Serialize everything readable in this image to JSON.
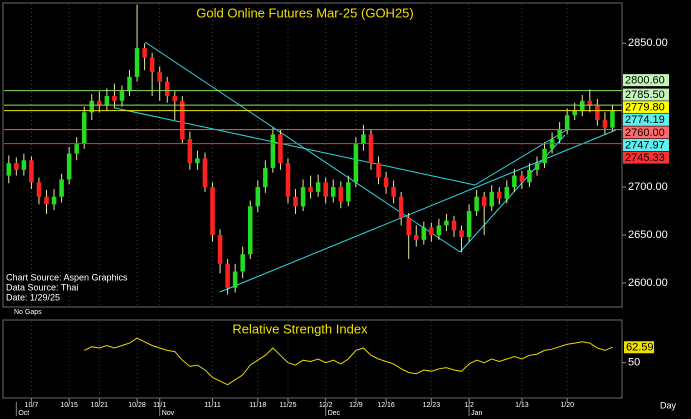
{
  "chart_data": [
    {
      "type": "candlestick",
      "title": "Gold Online Futures Mar-25 (GOH25)",
      "open": [
        2712,
        2725,
        2718,
        2728,
        2705,
        2690,
        2682,
        2690,
        2708,
        2735,
        2745,
        2778,
        2790,
        2785,
        2795,
        2790,
        2800,
        2815,
        2845,
        2835,
        2820,
        2810,
        2795,
        2790,
        2750,
        2725,
        2730,
        2700,
        2650,
        2620,
        2595,
        2612,
        2630,
        2680,
        2700,
        2720,
        2755,
        2725,
        2690,
        2680,
        2700,
        2695,
        2705,
        2690,
        2700,
        2685,
        2705,
        2745,
        2755,
        2725,
        2710,
        2700,
        2690,
        2668,
        2650,
        2645,
        2658,
        2650,
        2660,
        2665,
        2655,
        2648,
        2675,
        2690,
        2680,
        2695,
        2688,
        2700,
        2712,
        2705,
        2718,
        2725,
        2740,
        2750,
        2760,
        2775,
        2780,
        2790,
        2785,
        2770,
        2762
      ],
      "high": [
        2733,
        2731,
        2735,
        2732,
        2710,
        2697,
        2698,
        2714,
        2742,
        2752,
        2784,
        2797,
        2800,
        2803,
        2808,
        2806,
        2822,
        2890,
        2850,
        2840,
        2826,
        2815,
        2800,
        2795,
        2758,
        2738,
        2736,
        2705,
        2656,
        2625,
        2620,
        2638,
        2686,
        2707,
        2728,
        2762,
        2760,
        2730,
        2698,
        2708,
        2712,
        2713,
        2710,
        2708,
        2706,
        2712,
        2752,
        2765,
        2760,
        2732,
        2716,
        2707,
        2695,
        2673,
        2660,
        2664,
        2663,
        2667,
        2672,
        2670,
        2660,
        2682,
        2697,
        2695,
        2702,
        2700,
        2707,
        2719,
        2717,
        2725,
        2732,
        2747,
        2757,
        2768,
        2782,
        2788,
        2796,
        2802,
        2792,
        2778,
        2786
      ],
      "low": [
        2704,
        2712,
        2712,
        2698,
        2682,
        2672,
        2676,
        2684,
        2703,
        2728,
        2740,
        2770,
        2778,
        2780,
        2782,
        2784,
        2795,
        2810,
        2822,
        2795,
        2790,
        2788,
        2770,
        2745,
        2718,
        2718,
        2695,
        2643,
        2610,
        2588,
        2590,
        2605,
        2625,
        2674,
        2694,
        2715,
        2718,
        2683,
        2672,
        2675,
        2688,
        2690,
        2683,
        2684,
        2678,
        2680,
        2700,
        2738,
        2718,
        2703,
        2693,
        2683,
        2660,
        2625,
        2638,
        2640,
        2643,
        2645,
        2654,
        2648,
        2632,
        2643,
        2670,
        2650,
        2675,
        2682,
        2683,
        2695,
        2698,
        2700,
        2712,
        2720,
        2735,
        2745,
        2755,
        2770,
        2774,
        2778,
        2764,
        2755,
        2758
      ],
      "close": [
        2725,
        2718,
        2728,
        2705,
        2690,
        2682,
        2690,
        2708,
        2735,
        2745,
        2778,
        2790,
        2785,
        2795,
        2790,
        2800,
        2815,
        2845,
        2835,
        2820,
        2810,
        2795,
        2790,
        2750,
        2725,
        2730,
        2700,
        2650,
        2620,
        2595,
        2612,
        2630,
        2680,
        2700,
        2720,
        2755,
        2725,
        2690,
        2680,
        2700,
        2695,
        2705,
        2690,
        2700,
        2685,
        2705,
        2745,
        2755,
        2725,
        2710,
        2700,
        2690,
        2668,
        2650,
        2645,
        2658,
        2650,
        2660,
        2665,
        2655,
        2648,
        2675,
        2690,
        2680,
        2695,
        2688,
        2700,
        2712,
        2705,
        2718,
        2725,
        2740,
        2750,
        2760,
        2775,
        2780,
        2790,
        2785,
        2770,
        2762,
        2780
      ],
      "up_color": "#22dd22",
      "down_color": "#ff2020",
      "wick_color": "#e8e8a0",
      "xlim": [
        -0.5,
        81
      ],
      "ylim": [
        2576,
        2891
      ],
      "yticks": [
        {
          "value": 2600,
          "label": "2600.00"
        },
        {
          "value": 2650,
          "label": "2650.00"
        },
        {
          "value": 2700,
          "label": "2700.00"
        },
        {
          "value": 2850,
          "label": "2850.00"
        }
      ],
      "levels": [
        {
          "value": 2800.6,
          "label": "2800.60",
          "color": "#c4f5b8",
          "line": "#8ee05a"
        },
        {
          "value": 2785.5,
          "label": "2785.50",
          "color": "#c4f5b8",
          "line": "#8ee05a"
        },
        {
          "value": 2779.8,
          "label": "2779.80",
          "color": "#ffff00",
          "line": "#e8e800"
        },
        {
          "value": 2774.19,
          "label": "2774.19",
          "color": "#5cf0f0",
          "line": null
        },
        {
          "value": 2760,
          "label": "2760.00",
          "color": "#ff6a6a",
          "line": "#ff5050"
        },
        {
          "value": 2747.97,
          "label": "2747.97",
          "color": "#5cf0f0",
          "line": null
        },
        {
          "value": 2745.33,
          "label": "2745.33",
          "color": "#ff3030",
          "line": "#ff3030"
        }
      ],
      "xticks": [
        {
          "value": 3,
          "label": "10/7"
        },
        {
          "value": 8,
          "label": "10/15"
        },
        {
          "value": 12,
          "label": "10/21"
        },
        {
          "value": 17,
          "label": "10/28"
        },
        {
          "value": 20,
          "label": "11/1"
        },
        {
          "value": 27,
          "label": "11/11"
        },
        {
          "value": 33,
          "label": "11/18"
        },
        {
          "value": 37,
          "label": "11/25"
        },
        {
          "value": 42,
          "label": "12/2"
        },
        {
          "value": 46,
          "label": "12/9"
        },
        {
          "value": 50,
          "label": "12/16"
        },
        {
          "value": 56,
          "label": "12/23"
        },
        {
          "value": 61,
          "label": "1/2"
        },
        {
          "value": 68,
          "label": "1/13"
        },
        {
          "value": 74,
          "label": "1/20"
        }
      ],
      "month_ticks": [
        {
          "value": 1,
          "label": "Oct"
        },
        {
          "value": 20,
          "label": "Nov"
        },
        {
          "value": 42,
          "label": "Dec"
        },
        {
          "value": 61,
          "label": "Jan"
        }
      ],
      "x_label": "Day",
      "annotations": [
        "Chart Source: Aspen Graphics",
        "Data Source: Thai",
        "Date:    1/29/25",
        "No Gaps"
      ]
    },
    {
      "type": "line",
      "title": "Relative Strength Index",
      "color": "#e8d800",
      "values": [
        null,
        null,
        null,
        null,
        null,
        null,
        null,
        null,
        null,
        null,
        60,
        63,
        62,
        64,
        62,
        64,
        66,
        70,
        67,
        64,
        62,
        60,
        59,
        52,
        47,
        48,
        44,
        38,
        35,
        32,
        36,
        40,
        48,
        52,
        56,
        62,
        56,
        50,
        48,
        52,
        51,
        53,
        50,
        52,
        49,
        53,
        60,
        62,
        56,
        53,
        51,
        49,
        45,
        42,
        41,
        44,
        43,
        45,
        46,
        44,
        43,
        49,
        52,
        50,
        53,
        51,
        53,
        55,
        53,
        56,
        57,
        60,
        61,
        63,
        65,
        66,
        67,
        66,
        62,
        60,
        62.59
      ],
      "ylim": [
        22,
        84
      ],
      "yticks": [
        50
      ]
    }
  ]
}
